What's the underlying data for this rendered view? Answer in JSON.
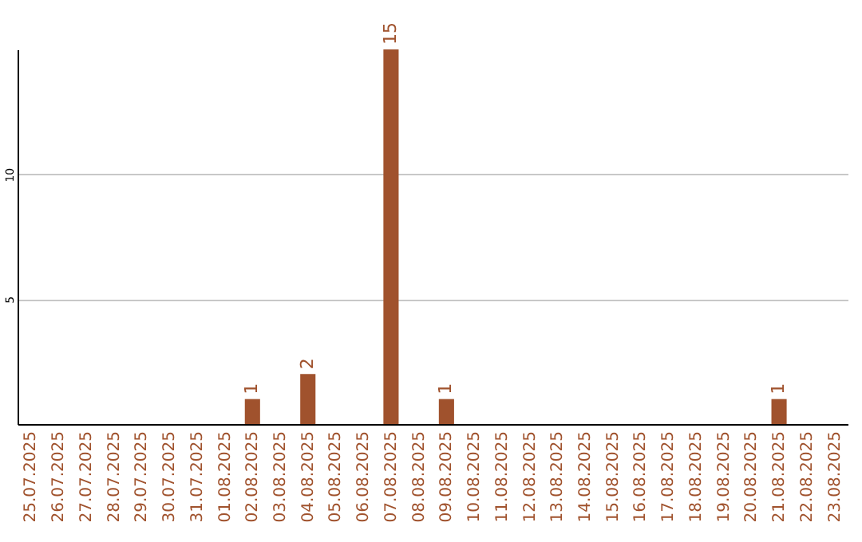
{
  "chart_data": {
    "type": "bar",
    "categories": [
      "25.07.2025",
      "26.07.2025",
      "27.07.2025",
      "28.07.2025",
      "29.07.2025",
      "30.07.2025",
      "31.07.2025",
      "01.08.2025",
      "02.08.2025",
      "03.08.2025",
      "04.08.2025",
      "05.08.2025",
      "06.08.2025",
      "07.08.2025",
      "08.08.2025",
      "09.08.2025",
      "10.08.2025",
      "11.08.2025",
      "12.08.2025",
      "13.08.2025",
      "14.08.2025",
      "15.08.2025",
      "16.08.2025",
      "17.08.2025",
      "18.08.2025",
      "19.08.2025",
      "20.08.2025",
      "21.08.2025",
      "22.08.2025",
      "23.08.2025"
    ],
    "values": [
      0,
      0,
      0,
      0,
      0,
      0,
      0,
      0,
      1,
      0,
      2,
      0,
      0,
      15,
      0,
      1,
      0,
      0,
      0,
      0,
      0,
      0,
      0,
      0,
      0,
      0,
      0,
      1,
      0,
      0
    ],
    "value_labels": [
      null,
      null,
      null,
      null,
      null,
      null,
      null,
      null,
      "1",
      null,
      "2",
      null,
      null,
      "15",
      null,
      "1",
      null,
      null,
      null,
      null,
      null,
      null,
      null,
      null,
      null,
      null,
      null,
      "1",
      null,
      null
    ],
    "color": "#a0522d",
    "ylim": [
      0,
      15
    ],
    "yticks": [
      5,
      10
    ],
    "grid": "y"
  }
}
